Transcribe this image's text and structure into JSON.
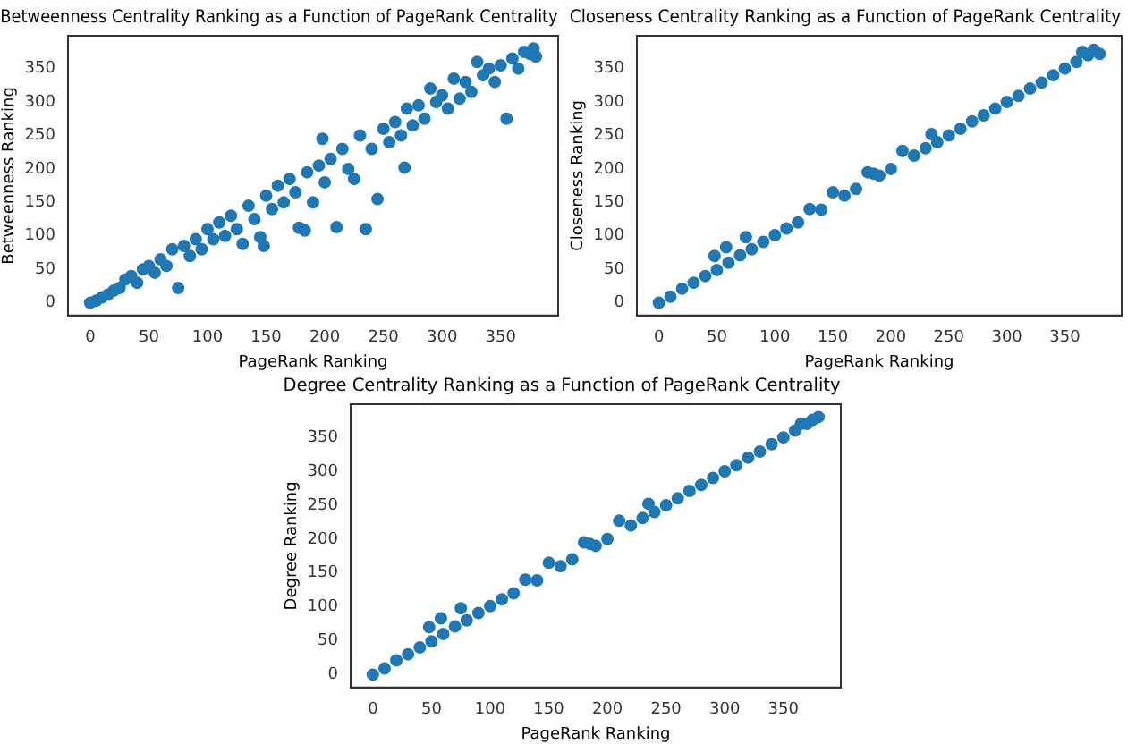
{
  "chart_data": [
    {
      "type": "scatter",
      "title": "Betweenness Centrality Ranking as a Function of PageRank Centrality",
      "xlabel": "PageRank Ranking",
      "ylabel": "Betweenness Ranking",
      "color": "#1f77b4",
      "marker": "circle",
      "xlim": [
        -19,
        399
      ],
      "ylim": [
        -19,
        399
      ],
      "xticks": [
        0,
        50,
        100,
        150,
        200,
        250,
        300,
        350
      ],
      "yticks": [
        0,
        50,
        100,
        150,
        200,
        250,
        300,
        350
      ],
      "x": [
        0,
        5,
        10,
        15,
        20,
        25,
        30,
        35,
        40,
        45,
        50,
        55,
        60,
        65,
        70,
        75,
        80,
        85,
        90,
        95,
        100,
        105,
        110,
        115,
        120,
        125,
        130,
        135,
        140,
        145,
        148,
        150,
        155,
        160,
        165,
        170,
        175,
        178,
        183,
        185,
        190,
        195,
        198,
        200,
        205,
        210,
        215,
        220,
        225,
        230,
        235,
        240,
        245,
        250,
        255,
        260,
        265,
        268,
        270,
        275,
        280,
        285,
        290,
        295,
        300,
        305,
        310,
        315,
        320,
        325,
        330,
        335,
        340,
        345,
        350,
        355,
        360,
        365,
        370,
        375,
        378,
        380
      ],
      "values": [
        0,
        3,
        8,
        12,
        18,
        22,
        35,
        40,
        30,
        50,
        55,
        45,
        65,
        55,
        80,
        22,
        85,
        70,
        95,
        80,
        110,
        95,
        120,
        100,
        130,
        110,
        88,
        145,
        125,
        98,
        85,
        160,
        140,
        175,
        150,
        185,
        165,
        112,
        108,
        195,
        150,
        205,
        245,
        180,
        215,
        113,
        230,
        200,
        185,
        250,
        110,
        230,
        155,
        260,
        240,
        270,
        250,
        202,
        290,
        265,
        295,
        275,
        320,
        300,
        310,
        290,
        335,
        305,
        330,
        315,
        360,
        340,
        350,
        330,
        355,
        275,
        365,
        350,
        375,
        372,
        380,
        368
      ]
    },
    {
      "type": "scatter",
      "title": "Closeness Centrality Ranking as a Function of PageRank Centrality",
      "xlabel": "PageRank Ranking",
      "ylabel": "Closeness Ranking",
      "color": "#1f77b4",
      "marker": "circle",
      "xlim": [
        -19,
        399
      ],
      "ylim": [
        -19,
        399
      ],
      "xticks": [
        0,
        50,
        100,
        150,
        200,
        250,
        300,
        350
      ],
      "yticks": [
        0,
        50,
        100,
        150,
        200,
        250,
        300,
        350
      ],
      "x": [
        0,
        10,
        20,
        30,
        40,
        48,
        50,
        58,
        60,
        70,
        75,
        80,
        90,
        100,
        110,
        120,
        130,
        140,
        150,
        160,
        170,
        180,
        185,
        190,
        200,
        210,
        220,
        230,
        235,
        240,
        250,
        260,
        270,
        280,
        290,
        300,
        310,
        320,
        330,
        340,
        350,
        360,
        365,
        370,
        375,
        380
      ],
      "values": [
        0,
        9,
        21,
        30,
        40,
        70,
        49,
        83,
        60,
        71,
        98,
        80,
        91,
        101,
        111,
        120,
        140,
        139,
        165,
        160,
        170,
        195,
        193,
        190,
        200,
        227,
        220,
        231,
        252,
        240,
        250,
        260,
        271,
        280,
        290,
        300,
        309,
        320,
        329,
        340,
        350,
        360,
        375,
        370,
        378,
        372
      ]
    },
    {
      "type": "scatter",
      "title": "Degree Centrality Ranking as a Function of PageRank Centrality",
      "xlabel": "PageRank Ranking",
      "ylabel": "Degree Ranking",
      "color": "#1f77b4",
      "marker": "circle",
      "xlim": [
        -19,
        399
      ],
      "ylim": [
        -19,
        399
      ],
      "xticks": [
        0,
        50,
        100,
        150,
        200,
        250,
        300,
        350
      ],
      "yticks": [
        0,
        50,
        100,
        150,
        200,
        250,
        300,
        350
      ],
      "x": [
        0,
        10,
        20,
        30,
        40,
        48,
        50,
        58,
        60,
        70,
        75,
        80,
        90,
        100,
        110,
        120,
        130,
        140,
        150,
        160,
        170,
        180,
        185,
        190,
        200,
        210,
        220,
        230,
        235,
        240,
        250,
        260,
        270,
        280,
        290,
        300,
        310,
        320,
        330,
        340,
        350,
        360,
        365,
        370,
        375,
        380
      ],
      "values": [
        0,
        9,
        21,
        30,
        40,
        70,
        49,
        83,
        60,
        71,
        98,
        80,
        91,
        101,
        111,
        120,
        140,
        139,
        165,
        160,
        170,
        195,
        193,
        190,
        200,
        227,
        220,
        231,
        252,
        240,
        250,
        260,
        271,
        280,
        290,
        300,
        309,
        320,
        329,
        340,
        350,
        360,
        370,
        370,
        376,
        380
      ]
    }
  ]
}
